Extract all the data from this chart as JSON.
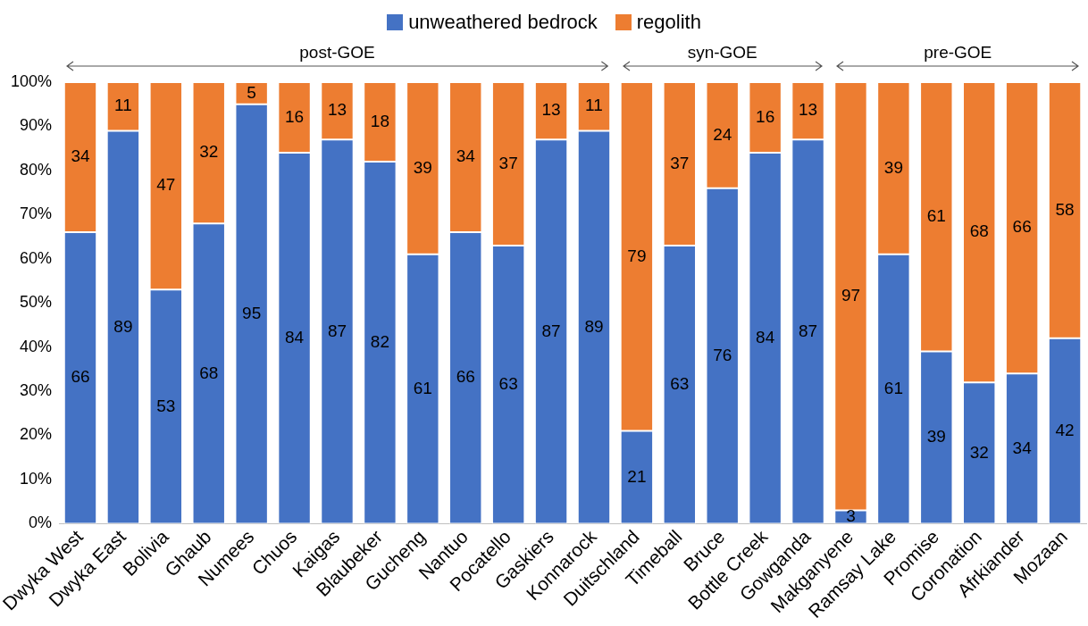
{
  "chart_data": {
    "type": "bar",
    "stacked": true,
    "legend": "top",
    "data_labels": true,
    "grid": false,
    "categories": [
      "Dwyka West",
      "Dwyka East",
      "Bolivia",
      "Ghaub",
      "Numees",
      "Chuos",
      "Kaigas",
      "Blaubeker",
      "Gucheng",
      "Nantuo",
      "Pocatello",
      "Gaskiers",
      "Konnarock",
      "Duitschland",
      "Timeball",
      "Bruce",
      "Bottle Creek",
      "Gowganda",
      "Makganyene",
      "Ramsay Lake",
      "Promise",
      "Coronation",
      "Afrkiander",
      "Mozaan"
    ],
    "series": [
      {
        "name": "unweathered bedrock",
        "color": "#4472c4",
        "values": [
          66,
          89,
          53,
          68,
          95,
          84,
          87,
          82,
          61,
          66,
          63,
          87,
          89,
          21,
          63,
          76,
          84,
          87,
          3,
          61,
          39,
          32,
          34,
          42
        ]
      },
      {
        "name": "regolith",
        "color": "#ed7d31",
        "values": [
          34,
          11,
          47,
          32,
          5,
          16,
          13,
          18,
          39,
          34,
          37,
          13,
          11,
          79,
          37,
          24,
          16,
          13,
          97,
          39,
          61,
          68,
          66,
          58
        ]
      }
    ],
    "ylim": [
      0,
      100
    ],
    "yticks": [
      {
        "value": 0,
        "label": "0%"
      },
      {
        "value": 10,
        "label": "10%"
      },
      {
        "value": 20,
        "label": "20%"
      },
      {
        "value": 30,
        "label": "30%"
      },
      {
        "value": 40,
        "label": "40%"
      },
      {
        "value": 50,
        "label": "50%"
      },
      {
        "value": 60,
        "label": "60%"
      },
      {
        "value": 70,
        "label": "70%"
      },
      {
        "value": 80,
        "label": "80%"
      },
      {
        "value": 90,
        "label": "90%"
      },
      {
        "value": 100,
        "label": "100%"
      }
    ],
    "annotations": [
      "post-GOE",
      "syn-GOE",
      "pre-GOE"
    ]
  }
}
